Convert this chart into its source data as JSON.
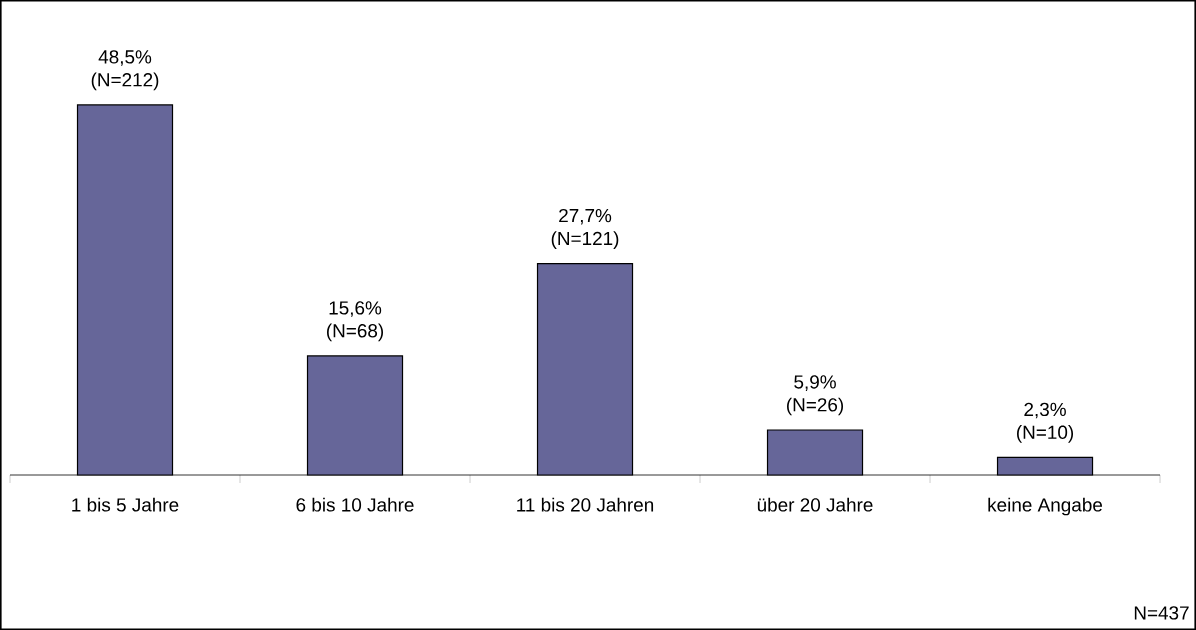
{
  "chart_data": {
    "type": "bar",
    "categories": [
      "1 bis 5 Jahre",
      "6 bis 10 Jahre",
      "11 bis 20 Jahren",
      "über 20 Jahre",
      "keine Angabe"
    ],
    "values": [
      48.5,
      15.6,
      27.7,
      5.9,
      2.3
    ],
    "value_labels": [
      "48,5% (N=212)",
      "15,6% (N=68)",
      "27,7% (N=121)",
      "5,9% (N=26)",
      "2,3% (N=10)"
    ],
    "color": "#666699",
    "annotations": [
      "N=437"
    ]
  }
}
